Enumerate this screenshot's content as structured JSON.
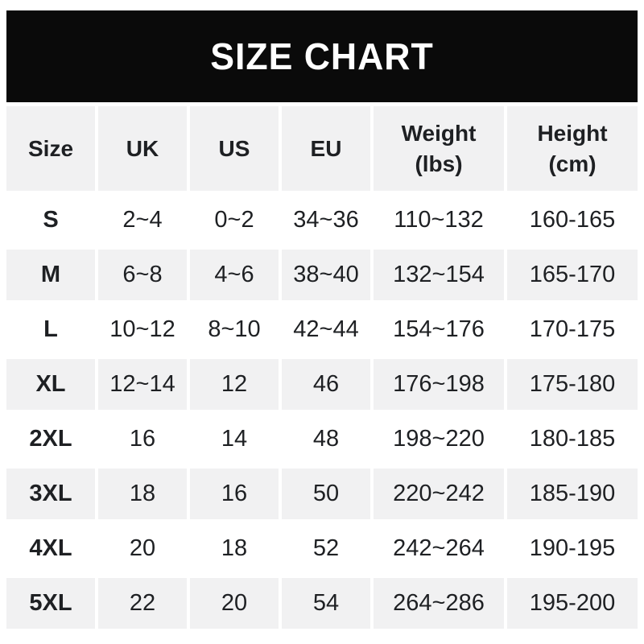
{
  "banner": {
    "title": "SIZE CHART",
    "bg_color": "#0a0a0a",
    "text_color": "#ffffff"
  },
  "table": {
    "stripe_color": "#f1f1f2",
    "headers": [
      {
        "line1": "Size",
        "line2": ""
      },
      {
        "line1": "UK",
        "line2": ""
      },
      {
        "line1": "US",
        "line2": ""
      },
      {
        "line1": "EU",
        "line2": ""
      },
      {
        "line1": "Weight",
        "line2": "(lbs)"
      },
      {
        "line1": "Height",
        "line2": "(cm)"
      }
    ]
  },
  "chart_data": {
    "type": "table",
    "title": "SIZE CHART",
    "columns": [
      "Size",
      "UK",
      "US",
      "EU",
      "Weight (lbs)",
      "Height (cm)"
    ],
    "rows": [
      [
        "S",
        "2~4",
        "0~2",
        "34~36",
        "110~132",
        "160-165"
      ],
      [
        "M",
        "6~8",
        "4~6",
        "38~40",
        "132~154",
        "165-170"
      ],
      [
        "L",
        "10~12",
        "8~10",
        "42~44",
        "154~176",
        "170-175"
      ],
      [
        "XL",
        "12~14",
        "12",
        "46",
        "176~198",
        "175-180"
      ],
      [
        "2XL",
        "16",
        "14",
        "48",
        "198~220",
        "180-185"
      ],
      [
        "3XL",
        "18",
        "16",
        "50",
        "220~242",
        "185-190"
      ],
      [
        "4XL",
        "20",
        "18",
        "52",
        "242~264",
        "190-195"
      ],
      [
        "5XL",
        "22",
        "20",
        "54",
        "264~286",
        "195-200"
      ]
    ]
  }
}
